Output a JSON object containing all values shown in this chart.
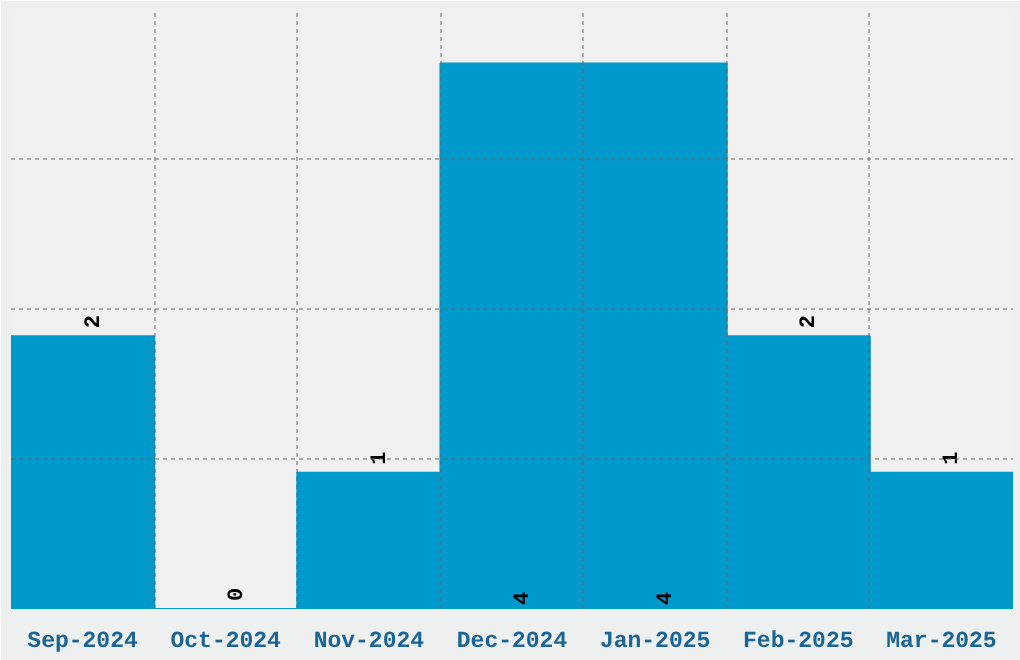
{
  "chart_data": {
    "type": "bar",
    "categories": [
      "Sep-2024",
      "Oct-2024",
      "Nov-2024",
      "Dec-2024",
      "Jan-2025",
      "Feb-2025",
      "Mar-2025"
    ],
    "values": [
      2,
      0,
      1,
      4,
      4,
      2,
      1
    ],
    "color": "#0099cc",
    "ylim": [
      0,
      4.4
    ],
    "yticks": [
      {
        "value": 1.1,
        "label": null
      },
      {
        "value": 2.2,
        "label": null
      },
      {
        "value": 3.3,
        "label": null
      }
    ],
    "tick_labels": "x",
    "grid": true,
    "data_labels": true
  }
}
